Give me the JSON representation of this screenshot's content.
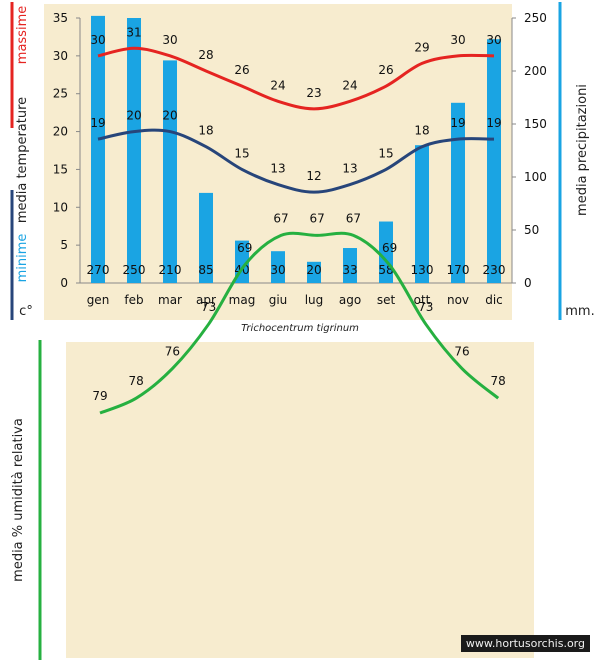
{
  "colors": {
    "max_temp": "#e52421",
    "min_temp": "#27457a",
    "precip": "#1aa4e3",
    "humidity": "#26b040",
    "background": "#f7eccf"
  },
  "labels": {
    "species": "Trichocentrum tigrinum",
    "watermark": "www.hortusorchis.org",
    "massime": "massime",
    "minime": "minime",
    "media_temperature": "media  temperature",
    "unit_temp": "c°",
    "precip_axis": "media  precipitazioni",
    "unit_precip": "mm.",
    "humidity_axis": "media %  umidità relativa"
  },
  "chart_data": [
    {
      "type": "bar+line",
      "title": "",
      "categories": [
        "gen",
        "feb",
        "mar",
        "apr",
        "mag",
        "giu",
        "lug",
        "ago",
        "set",
        "ott",
        "nov",
        "dic"
      ],
      "y_left": {
        "label": "media  temperature",
        "unit": "c°",
        "range": [
          0,
          35
        ],
        "ticks": [
          0,
          5,
          10,
          15,
          20,
          25,
          30,
          35
        ]
      },
      "y_right": {
        "label": "media  precipitazioni",
        "unit": "mm.",
        "range": [
          0,
          250
        ],
        "ticks": [
          0,
          50,
          100,
          150,
          200,
          250
        ]
      },
      "series": [
        {
          "name": "massime",
          "type": "line",
          "axis": "left",
          "values": [
            30,
            31,
            30,
            28,
            26,
            24,
            23,
            24,
            26,
            29,
            30,
            30
          ]
        },
        {
          "name": "minime",
          "type": "line",
          "axis": "left",
          "values": [
            19,
            20,
            20,
            18,
            15,
            13,
            12,
            13,
            15,
            18,
            19,
            19
          ]
        },
        {
          "name": "media precipitazioni",
          "type": "bar",
          "axis": "right",
          "values": [
            270,
            250,
            210,
            85,
            40,
            30,
            20,
            33,
            58,
            130,
            170,
            230
          ]
        }
      ]
    },
    {
      "type": "line",
      "title": "",
      "ylabel": "media %  umidità relativa",
      "categories": [
        "gen",
        "feb",
        "mar",
        "apr",
        "mag",
        "giu",
        "lug",
        "ago",
        "set",
        "ott",
        "nov",
        "dic"
      ],
      "series": [
        {
          "name": "umidità relativa",
          "values": [
            79,
            78,
            76,
            73,
            69,
            67,
            67,
            67,
            69,
            73,
            76,
            78
          ]
        }
      ]
    }
  ]
}
